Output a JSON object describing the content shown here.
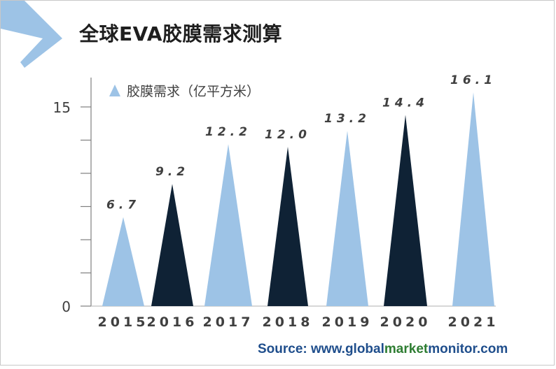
{
  "title": "全球EVA胶膜需求测算",
  "source": {
    "prefix": "Source: www.",
    "part_global": "global",
    "part_market": "market",
    "part_monitor": "monitor",
    "suffix": ".com"
  },
  "colors": {
    "light_blue": "#9dc3e6",
    "dark_navy": "#0f2235",
    "axis": "#7f7f7f",
    "label": "#404040"
  },
  "chart_data": {
    "type": "bar",
    "bar_shape": "triangle",
    "categories": [
      "2015",
      "2016",
      "2017",
      "2018",
      "2019",
      "2020",
      "2021"
    ],
    "series": [
      {
        "name": "胶膜需求（亿平方米）",
        "values": [
          6.7,
          9.2,
          12.2,
          12.0,
          13.2,
          14.4,
          16.1
        ],
        "value_labels": [
          "6.7",
          "9.2",
          "12.2",
          "12.0",
          "13.2",
          "14.4",
          "16.1"
        ],
        "colors": [
          "#9dc3e6",
          "#0f2235",
          "#9dc3e6",
          "#0f2235",
          "#9dc3e6",
          "#0f2235",
          "#9dc3e6"
        ]
      }
    ],
    "y_ticks_labeled": [
      "0",
      "15"
    ],
    "ylim": [
      0,
      17
    ],
    "y_minor_step": 2.5,
    "legend_position": "top-left",
    "grid": false
  }
}
